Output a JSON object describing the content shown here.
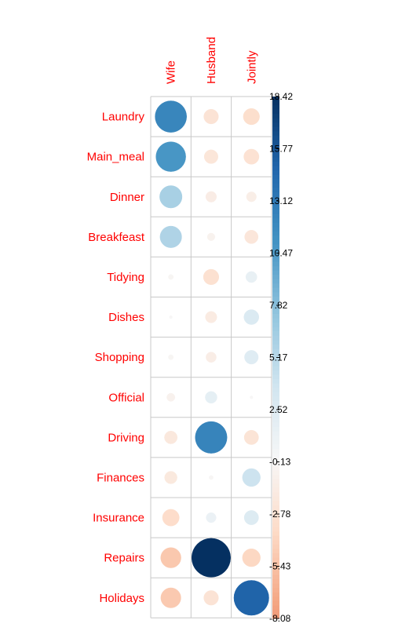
{
  "chart_data": {
    "type": "heatmap",
    "subtype": "correlation-plot-circles",
    "columns": [
      "Wife",
      "Husband",
      "Jointly"
    ],
    "rows": [
      "Laundry",
      "Main_meal",
      "Dinner",
      "Breakfeast",
      "Tidying",
      "Dishes",
      "Shopping",
      "Official",
      "Driving",
      "Finances",
      "Insurance",
      "Repairs",
      "Holidays"
    ],
    "values": [
      [
        12.1,
        -2.6,
        -3.2
      ],
      [
        10.8,
        -2.3,
        -2.8
      ],
      [
        6.1,
        -1.4,
        -1.2
      ],
      [
        5.7,
        -0.7,
        -2.2
      ],
      [
        -0.3,
        -2.9,
        1.5
      ],
      [
        -0.1,
        -1.6,
        2.7
      ],
      [
        -0.3,
        -1.3,
        2.3
      ],
      [
        -0.8,
        1.7,
        -0.1
      ],
      [
        -2.0,
        12.3,
        -2.5
      ],
      [
        -1.9,
        -0.2,
        3.9
      ],
      [
        -3.4,
        1.2,
        2.5
      ],
      [
        -5.0,
        18.4,
        -3.9
      ],
      [
        -4.9,
        -2.6,
        14.9
      ]
    ],
    "legend": {
      "ticks": [
        "18.42",
        "15.77",
        "13.12",
        "10.47",
        "7.82",
        "5.17",
        "2.52",
        "-0.13",
        "-2.78",
        "-5.43",
        "-8.08"
      ],
      "range": [
        -8.08,
        18.42
      ],
      "placement": "right"
    },
    "colors": {
      "negative": "#67001F",
      "neutral": "#F7F7F7",
      "positive": "#053061",
      "labels": "#FF0000"
    },
    "grid": true
  }
}
